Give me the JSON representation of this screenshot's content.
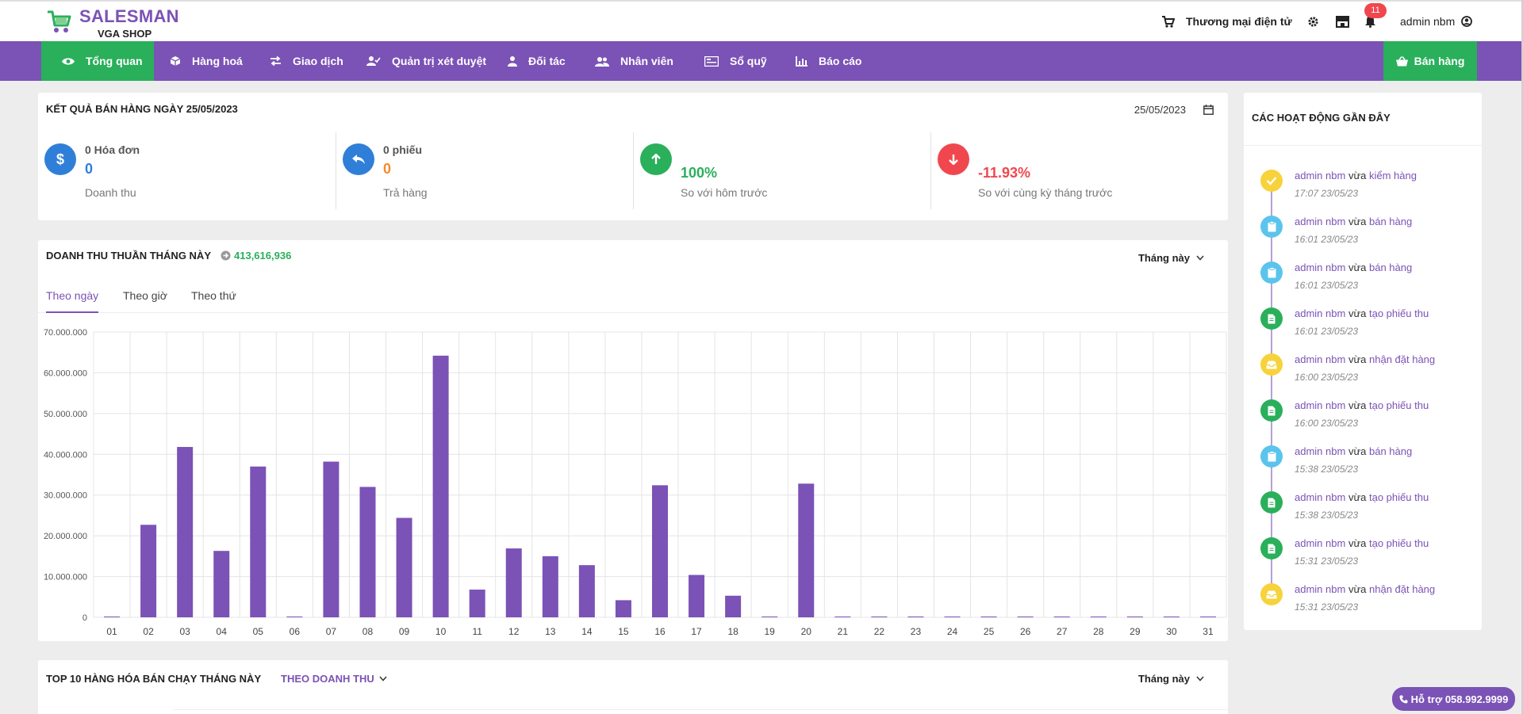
{
  "brand": {
    "title": "SALESMAN",
    "subtitle": "VGA SHOP",
    "color": "#7b52b5"
  },
  "header": {
    "ecommerce_label": "Thương mại điện tử",
    "notification_count": "11",
    "user_name": "admin nbm"
  },
  "nav": {
    "items": [
      {
        "label": "Tổng quan",
        "icon": "eye-icon"
      },
      {
        "label": "Hàng hoá",
        "icon": "box-icon"
      },
      {
        "label": "Giao dịch",
        "icon": "exchange-icon"
      },
      {
        "label": "Quản trị xét duyệt",
        "icon": "user-check-icon"
      },
      {
        "label": "Đối tác",
        "icon": "user-tie-icon"
      },
      {
        "label": "Nhân viên",
        "icon": "users-icon"
      },
      {
        "label": "Sổ quỹ",
        "icon": "money-check-icon"
      },
      {
        "label": "Báo cáo",
        "icon": "chart-bar-icon"
      }
    ],
    "sell_label": "Bán hàng"
  },
  "summary": {
    "title": "KẾT QUẢ BÁN HÀNG NGÀY 25/05/2023",
    "date": "25/05/2023",
    "stats": [
      {
        "label": "0 Hóa đơn",
        "value": "0",
        "desc": "Doanh thu",
        "color": "#2f7fd8",
        "icon": "dollar-icon"
      },
      {
        "label": "0 phiếu",
        "value": "0",
        "desc": "Trả hàng",
        "color": "#2f7fd8",
        "value_color": "#f58a2a",
        "icon": "reply-icon"
      },
      {
        "label": "",
        "value": "100%",
        "desc": "So với hôm trước",
        "color": "#2aaf5b",
        "icon": "arrow-up-icon"
      },
      {
        "label": "",
        "value": "-11.93%",
        "desc": "So với cùng kỳ tháng trước",
        "color": "#f0474e",
        "icon": "arrow-down-icon"
      }
    ]
  },
  "revenue": {
    "title": "DOANH THU THUẦN THÁNG NÀY",
    "total": "413,616,936",
    "period": "Tháng này",
    "tabs": [
      "Theo ngày",
      "Theo giờ",
      "Theo thứ"
    ]
  },
  "chart_data": {
    "type": "bar",
    "categories": [
      "01",
      "02",
      "03",
      "04",
      "05",
      "06",
      "07",
      "08",
      "09",
      "10",
      "11",
      "12",
      "13",
      "14",
      "15",
      "16",
      "17",
      "18",
      "19",
      "20",
      "21",
      "22",
      "23",
      "24",
      "25",
      "26",
      "27",
      "28",
      "29",
      "30",
      "31"
    ],
    "values": [
      0,
      22700000,
      41800000,
      16300000,
      37000000,
      0,
      38200000,
      32000000,
      24400000,
      64200000,
      6800000,
      16900000,
      15000000,
      12800000,
      4200000,
      32400000,
      10400000,
      5300000,
      0,
      32800000,
      0,
      0,
      200000,
      0,
      0,
      0,
      0,
      0,
      0,
      0,
      0
    ],
    "yticks": [
      "0",
      "10.000.000",
      "20.000.000",
      "30.000.000",
      "40.000.000",
      "50.000.000",
      "60.000.000",
      "70.000.000"
    ],
    "ylim": [
      0,
      70000000
    ],
    "color": "#7b52b5",
    "grid": true
  },
  "top10": {
    "title": "TOP 10 HÀNG HÓA BÁN CHẠY THÁNG NÀY",
    "sort": "THEO DOANH THU",
    "period": "Tháng này"
  },
  "activity": {
    "title": "CÁC HOẠT ĐỘNG GẦN ĐÂY",
    "items": [
      {
        "user": "admin nbm",
        "verb": "vừa",
        "action": "kiểm hàng",
        "time": "17:07 23/05/23",
        "color": "#f7d23a",
        "icon": "check-icon"
      },
      {
        "user": "admin nbm",
        "verb": "vừa",
        "action": "bán hàng",
        "time": "16:01 23/05/23",
        "color": "#5bc4ec",
        "icon": "clipboard-icon"
      },
      {
        "user": "admin nbm",
        "verb": "vừa",
        "action": "bán hàng",
        "time": "16:01 23/05/23",
        "color": "#5bc4ec",
        "icon": "clipboard-icon"
      },
      {
        "user": "admin nbm",
        "verb": "vừa",
        "action": "tạo phiếu thu",
        "time": "16:01 23/05/23",
        "color": "#2aaf5b",
        "icon": "file-icon"
      },
      {
        "user": "admin nbm",
        "verb": "vừa",
        "action": "nhận đặt hàng",
        "time": "16:00 23/05/23",
        "color": "#f7d23a",
        "icon": "inbox-icon"
      },
      {
        "user": "admin nbm",
        "verb": "vừa",
        "action": "tạo phiếu thu",
        "time": "16:00 23/05/23",
        "color": "#2aaf5b",
        "icon": "file-icon"
      },
      {
        "user": "admin nbm",
        "verb": "vừa",
        "action": "bán hàng",
        "time": "15:38 23/05/23",
        "color": "#5bc4ec",
        "icon": "clipboard-icon"
      },
      {
        "user": "admin nbm",
        "verb": "vừa",
        "action": "tạo phiếu thu",
        "time": "15:38 23/05/23",
        "color": "#2aaf5b",
        "icon": "file-icon"
      },
      {
        "user": "admin nbm",
        "verb": "vừa",
        "action": "tạo phiếu thu",
        "time": "15:31 23/05/23",
        "color": "#2aaf5b",
        "icon": "file-icon"
      },
      {
        "user": "admin nbm",
        "verb": "vừa",
        "action": "nhận đặt hàng",
        "time": "15:31 23/05/23",
        "color": "#f7d23a",
        "icon": "inbox-icon"
      }
    ]
  },
  "support": {
    "label": "Hỗ trợ 058.992.9999"
  }
}
